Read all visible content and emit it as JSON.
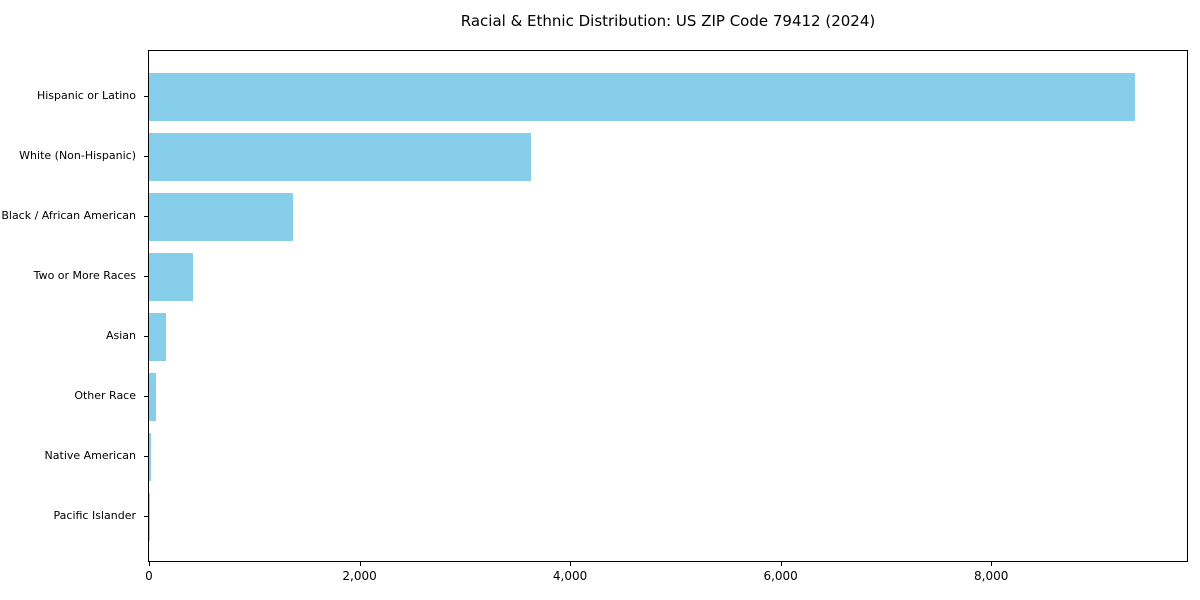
{
  "figure": {
    "background": "#ffffff"
  },
  "colors": {
    "bar": "#87CEEB",
    "text": "#000000",
    "spine": "#000000",
    "background": "#ffffff"
  },
  "chart_data": {
    "type": "bar",
    "orientation": "horizontal",
    "title": "Racial & Ethnic Distribution: US ZIP Code 79412 (2024)",
    "categories": [
      "Hispanic or Latino",
      "White (Non-Hispanic)",
      "Black / African American",
      "Two or More Races",
      "Asian",
      "Other Race",
      "Native American",
      "Pacific Islander"
    ],
    "values": [
      9365,
      3630,
      1365,
      420,
      160,
      65,
      20,
      8
    ],
    "xlabel": "",
    "ylabel": "",
    "xlim": [
      0,
      9860
    ],
    "xticks": [
      0,
      2000,
      4000,
      6000,
      8000
    ],
    "xtick_labels": [
      "0",
      "2,000",
      "4,000",
      "6,000",
      "8,000"
    ],
    "bar_color": "#87CEEB",
    "grid": false,
    "legend": null
  }
}
